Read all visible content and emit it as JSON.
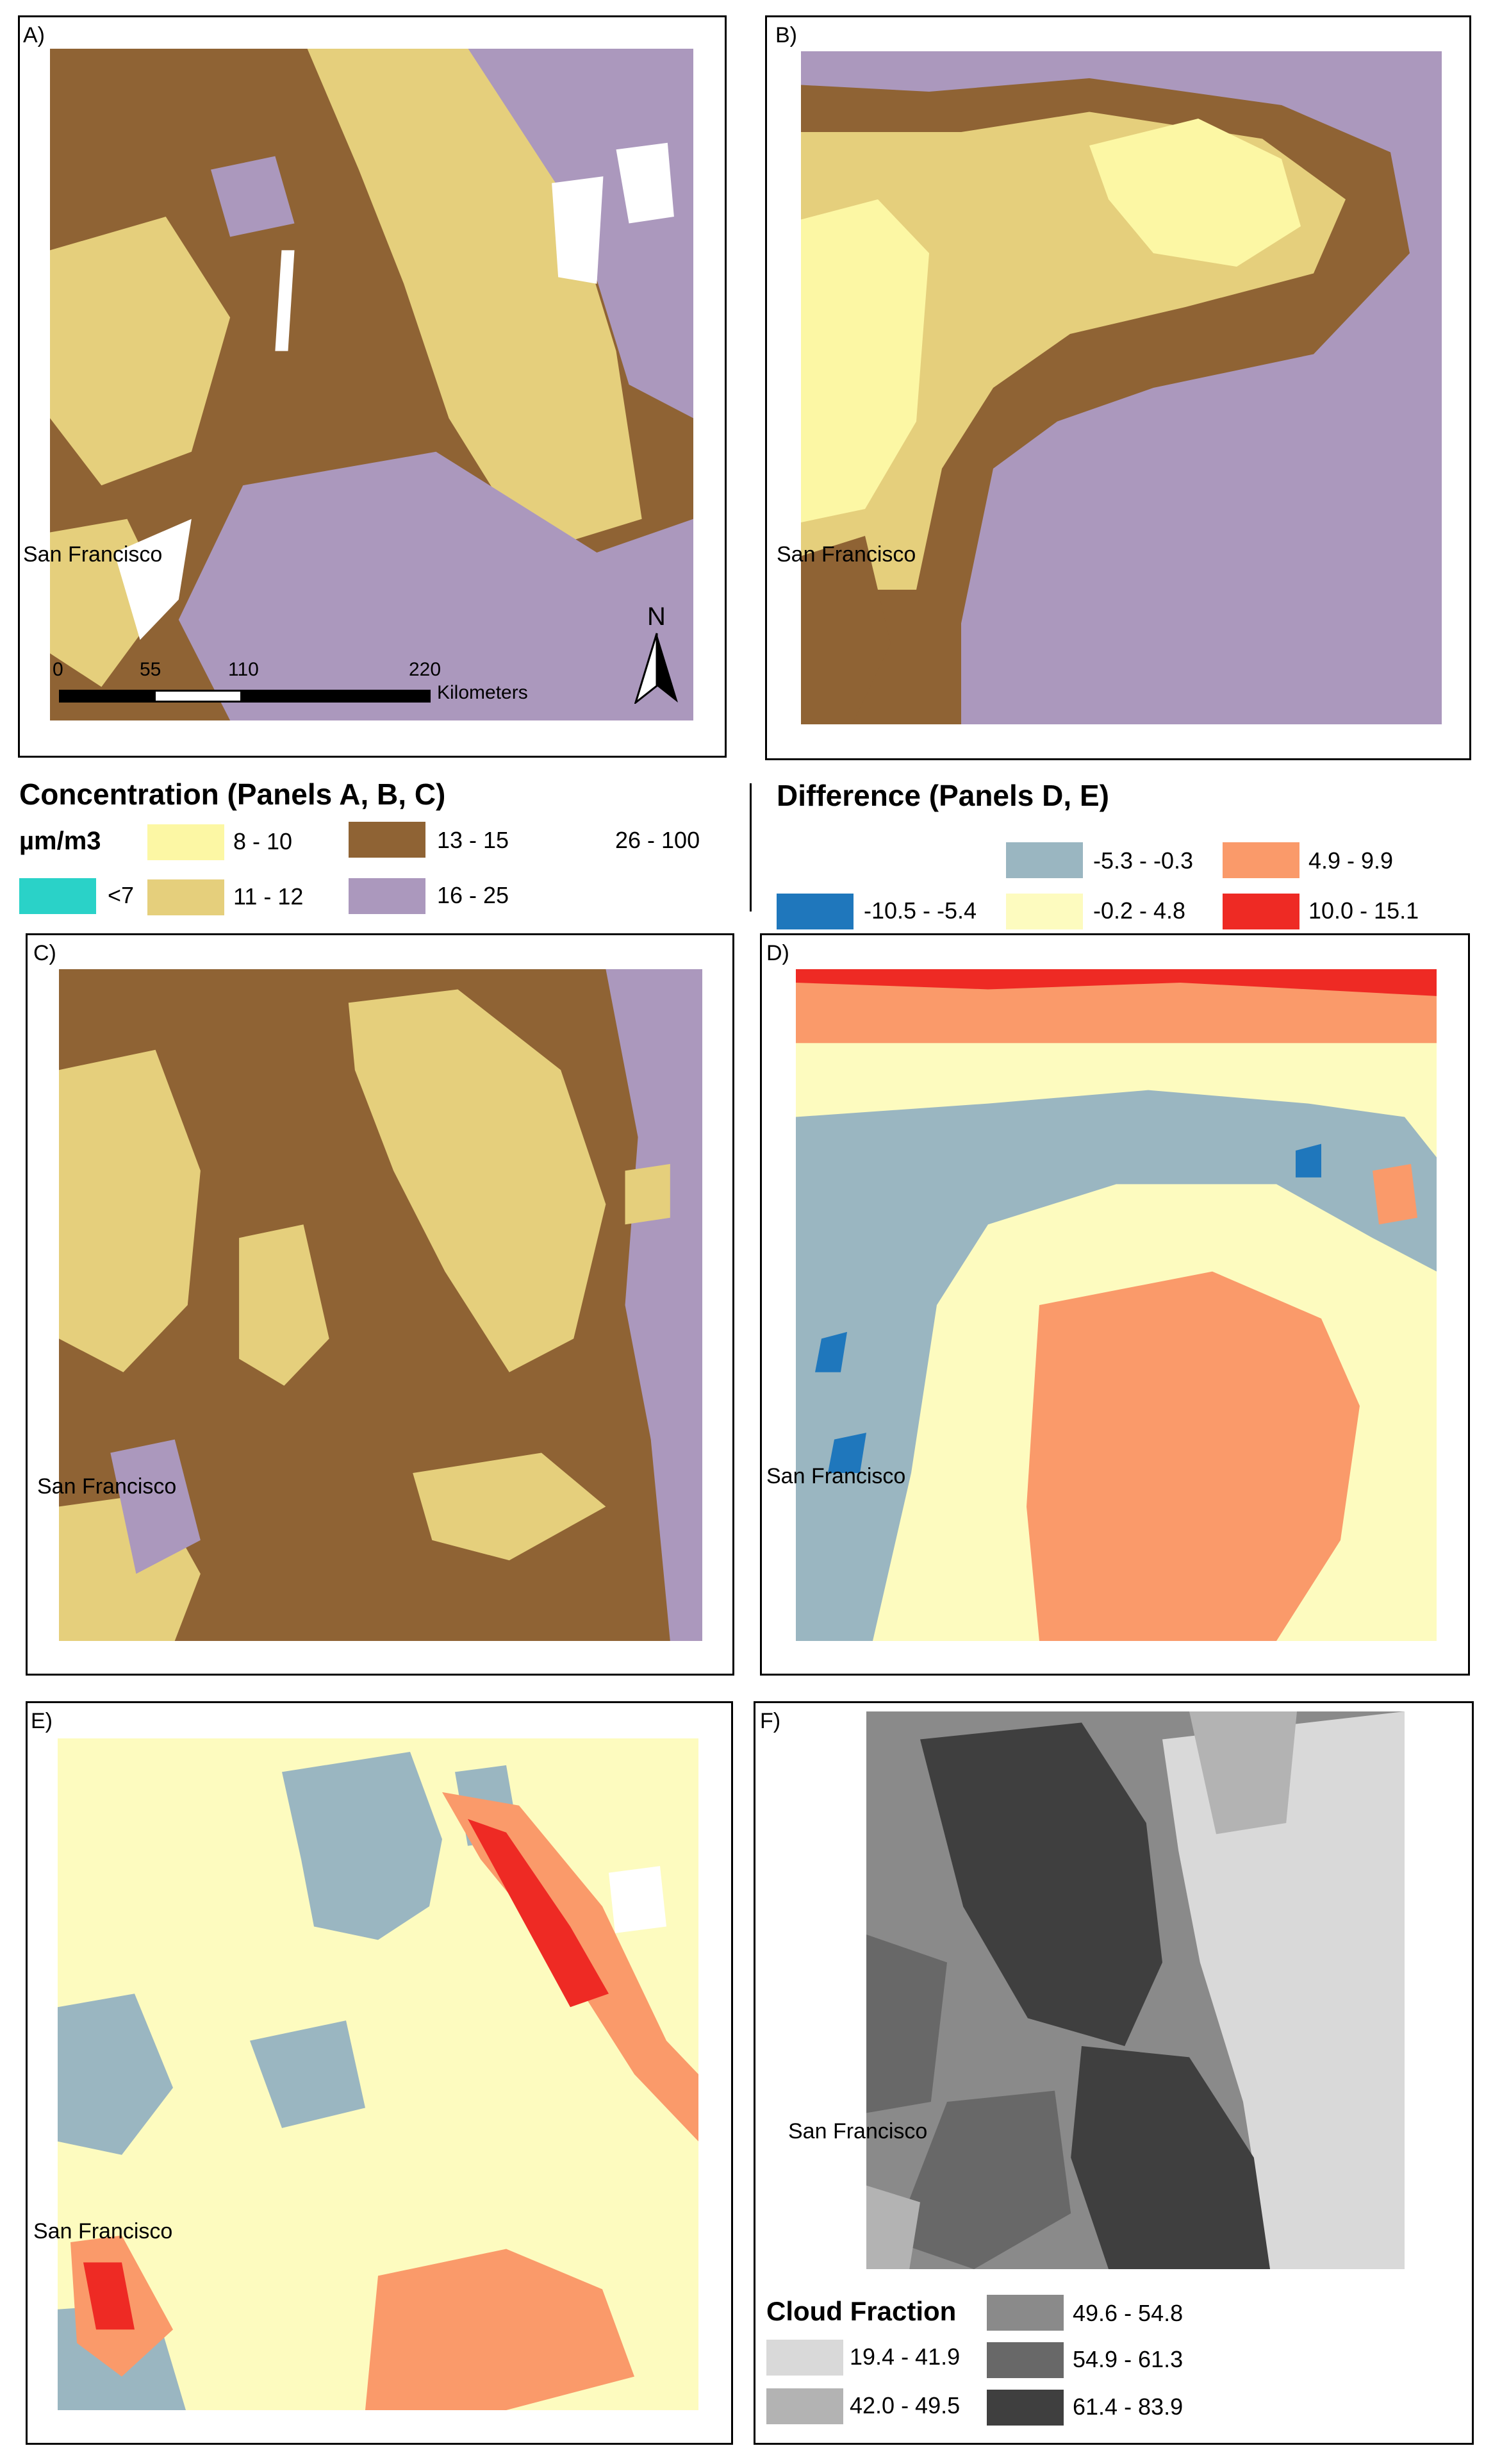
{
  "panels": {
    "a": {
      "label": "A)",
      "city": "San Francisco"
    },
    "b": {
      "label": "B)",
      "city": "San Francisco"
    },
    "c": {
      "label": "C)",
      "city": "San Francisco"
    },
    "d": {
      "label": "D)",
      "city": "San Francisco"
    },
    "e": {
      "label": "E)",
      "city": "San Francisco"
    },
    "f": {
      "label": "F)",
      "city": "San Francisco"
    }
  },
  "scale_bar": {
    "ticks": [
      "0",
      "55",
      "110",
      "220"
    ],
    "unit": "Kilometers"
  },
  "north_arrow": {
    "label": "N"
  },
  "concentration_legend": {
    "title": "Concentration (Panels A, B, C)",
    "unit": "µm/m3",
    "classes": [
      {
        "label": "<7",
        "color": "#2ad2c8"
      },
      {
        "label": "8 - 10",
        "color": "#fcf7a4"
      },
      {
        "label": "11 - 12",
        "color": "#e5cf7c"
      },
      {
        "label": "13 - 15",
        "color": "#8f6334"
      },
      {
        "label": "16 - 25",
        "color": "#ab98bd"
      },
      {
        "label": "26 - 100",
        "color": "#ffffff"
      }
    ]
  },
  "difference_legend": {
    "title": "Difference (Panels D, E)",
    "classes": [
      {
        "label": "-10.5 - -5.4",
        "color": "#1f77bc"
      },
      {
        "label": "-5.3 - -0.3",
        "color": "#9ab6c1"
      },
      {
        "label": "-0.2 - 4.8",
        "color": "#fdfbbf"
      },
      {
        "label": "4.9 - 9.9",
        "color": "#fa9a6a"
      },
      {
        "label": "10.0 - 15.1",
        "color": "#ee2a24"
      }
    ]
  },
  "cloud_legend": {
    "title": "Cloud Fraction",
    "classes": [
      {
        "label": "19.4 - 41.9",
        "color": "#d9d9d9"
      },
      {
        "label": "42.0 - 49.5",
        "color": "#b3b3b3"
      },
      {
        "label": "49.6 - 54.8",
        "color": "#8a8a8a"
      },
      {
        "label": "54.9 - 61.3",
        "color": "#686868"
      },
      {
        "label": "61.4 - 83.9",
        "color": "#3f3f3f"
      }
    ]
  }
}
